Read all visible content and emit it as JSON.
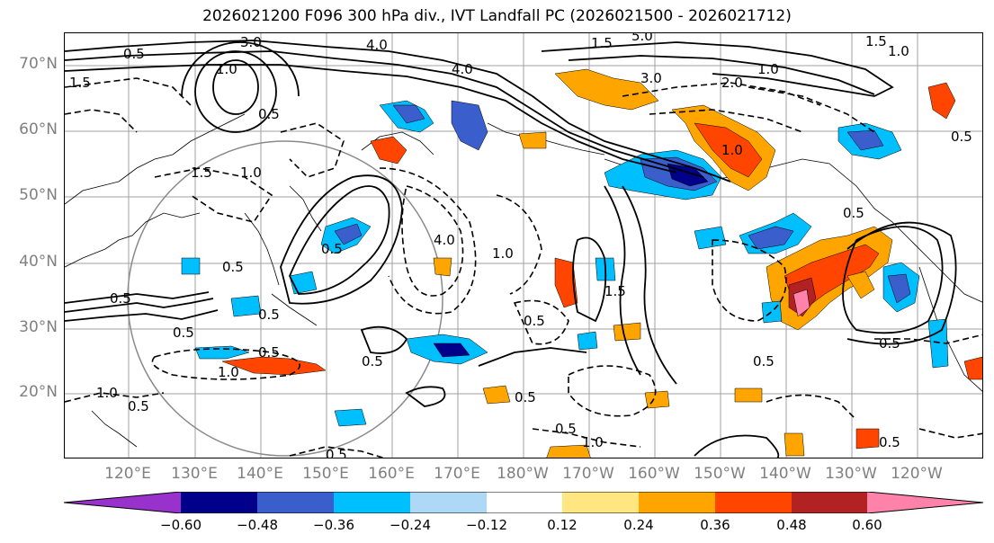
{
  "title": "2026021200 F096 300 hPa div., IVT Landfall PC (2026021500 - 2026021712)",
  "lat_labels": [
    "70°N",
    "60°N",
    "50°N",
    "40°N",
    "30°N",
    "20°N"
  ],
  "lon_labels": [
    "120°E",
    "130°E",
    "140°E",
    "150°E",
    "160°E",
    "170°E",
    "180°W",
    "170°W",
    "160°W",
    "150°W",
    "140°W",
    "130°W",
    "120°W"
  ],
  "colorbar": {
    "colors": [
      "#9932CC",
      "#00008B",
      "#3A5FCD",
      "#00BFFF",
      "#ADD8F6",
      "#FFFFFF",
      "#FFE680",
      "#FFA500",
      "#FF4500",
      "#B22222",
      "#FF82AB"
    ],
    "ticks": [
      "−0.60",
      "−0.48",
      "−0.36",
      "−0.24",
      "−0.12",
      "0.12",
      "0.24",
      "0.36",
      "0.48",
      "0.60"
    ]
  },
  "contour_labels": [
    "3.0",
    "4.0",
    "1.5",
    "5.0",
    "1.5",
    "1.0",
    "3.0",
    "2.0",
    "1.0",
    "4.0",
    "1.0",
    "0.5",
    "1.5",
    "0.5",
    "1.5",
    "1.0",
    "0.5",
    "0.5",
    "4.0",
    "1.0",
    "0.5",
    "0.5",
    "1.5",
    "0.5",
    "1.0",
    "0.5",
    "0.5",
    "1.0",
    "0.5",
    "0.5",
    "1.0",
    "0.5",
    "0.5",
    "0.5",
    "1.0",
    "0.5",
    "0.5",
    "0.5",
    "0.5",
    "0.5"
  ]
}
